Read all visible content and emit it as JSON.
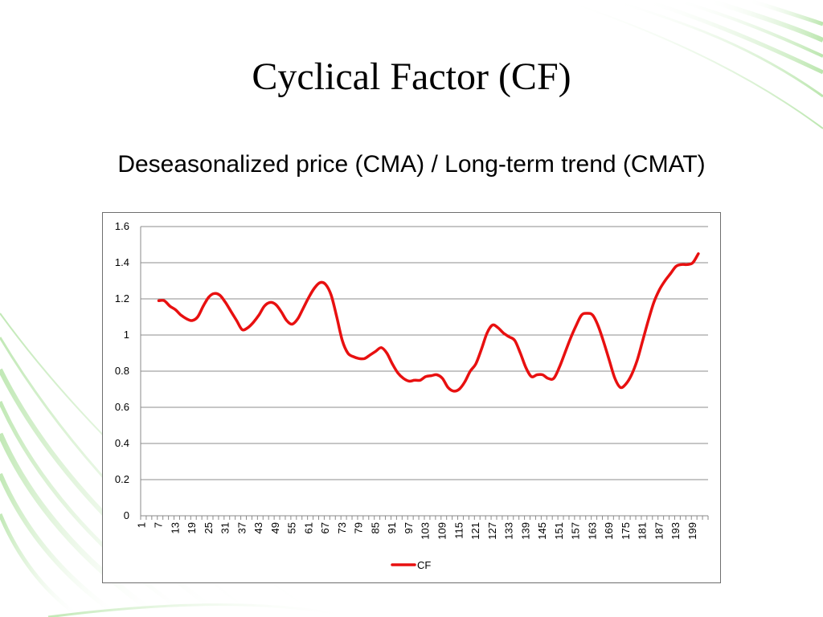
{
  "slide": {
    "title": "Cyclical Factor (CF)",
    "subtitle": "Deseasonalized price (CMA) / Long-term trend (CMAT)",
    "accent_green": "#8fd67a"
  },
  "chart_data": {
    "type": "line",
    "title": "",
    "xlabel": "",
    "ylabel": "",
    "x_categories_count": 204,
    "x_tick_labels": [
      "1",
      "7",
      "13",
      "19",
      "25",
      "31",
      "37",
      "43",
      "49",
      "55",
      "61",
      "67",
      "73",
      "79",
      "85",
      "91",
      "97",
      "103",
      "109",
      "115",
      "121",
      "127",
      "133",
      "139",
      "145",
      "151",
      "157",
      "163",
      "169",
      "175",
      "181",
      "187",
      "193",
      "199"
    ],
    "y_tick_labels": [
      "0",
      "0.2",
      "0.4",
      "0.6",
      "0.8",
      "1",
      "1.2",
      "1.4",
      "1.6"
    ],
    "ylim": [
      0,
      1.6
    ],
    "grid": true,
    "legend_position": "bottom",
    "series": [
      {
        "name": "CF",
        "color": "#e81010",
        "points": [
          [
            7,
            1.19
          ],
          [
            9,
            1.19
          ],
          [
            11,
            1.16
          ],
          [
            13,
            1.14
          ],
          [
            15,
            1.11
          ],
          [
            17,
            1.09
          ],
          [
            19,
            1.08
          ],
          [
            21,
            1.1
          ],
          [
            23,
            1.16
          ],
          [
            25,
            1.21
          ],
          [
            27,
            1.23
          ],
          [
            29,
            1.22
          ],
          [
            31,
            1.18
          ],
          [
            33,
            1.13
          ],
          [
            35,
            1.08
          ],
          [
            37,
            1.03
          ],
          [
            39,
            1.04
          ],
          [
            41,
            1.07
          ],
          [
            43,
            1.11
          ],
          [
            45,
            1.16
          ],
          [
            47,
            1.18
          ],
          [
            49,
            1.17
          ],
          [
            51,
            1.13
          ],
          [
            53,
            1.08
          ],
          [
            55,
            1.06
          ],
          [
            57,
            1.09
          ],
          [
            59,
            1.15
          ],
          [
            61,
            1.21
          ],
          [
            63,
            1.26
          ],
          [
            65,
            1.29
          ],
          [
            67,
            1.28
          ],
          [
            69,
            1.22
          ],
          [
            71,
            1.1
          ],
          [
            73,
            0.97
          ],
          [
            75,
            0.9
          ],
          [
            77,
            0.88
          ],
          [
            79,
            0.87
          ],
          [
            81,
            0.87
          ],
          [
            83,
            0.89
          ],
          [
            85,
            0.91
          ],
          [
            87,
            0.93
          ],
          [
            89,
            0.9
          ],
          [
            91,
            0.84
          ],
          [
            93,
            0.79
          ],
          [
            95,
            0.76
          ],
          [
            97,
            0.745
          ],
          [
            99,
            0.75
          ],
          [
            101,
            0.75
          ],
          [
            103,
            0.77
          ],
          [
            105,
            0.775
          ],
          [
            107,
            0.78
          ],
          [
            109,
            0.76
          ],
          [
            111,
            0.71
          ],
          [
            113,
            0.69
          ],
          [
            115,
            0.7
          ],
          [
            117,
            0.74
          ],
          [
            119,
            0.8
          ],
          [
            121,
            0.84
          ],
          [
            123,
            0.92
          ],
          [
            125,
            1.01
          ],
          [
            127,
            1.055
          ],
          [
            129,
            1.04
          ],
          [
            131,
            1.01
          ],
          [
            133,
            0.99
          ],
          [
            135,
            0.97
          ],
          [
            137,
            0.9
          ],
          [
            139,
            0.82
          ],
          [
            141,
            0.77
          ],
          [
            143,
            0.78
          ],
          [
            145,
            0.78
          ],
          [
            147,
            0.76
          ],
          [
            149,
            0.76
          ],
          [
            151,
            0.82
          ],
          [
            153,
            0.9
          ],
          [
            155,
            0.98
          ],
          [
            157,
            1.05
          ],
          [
            159,
            1.11
          ],
          [
            161,
            1.12
          ],
          [
            163,
            1.11
          ],
          [
            165,
            1.05
          ],
          [
            167,
            0.96
          ],
          [
            169,
            0.86
          ],
          [
            171,
            0.76
          ],
          [
            173,
            0.71
          ],
          [
            175,
            0.73
          ],
          [
            177,
            0.78
          ],
          [
            179,
            0.86
          ],
          [
            181,
            0.97
          ],
          [
            183,
            1.08
          ],
          [
            185,
            1.18
          ],
          [
            187,
            1.25
          ],
          [
            189,
            1.3
          ],
          [
            191,
            1.34
          ],
          [
            193,
            1.38
          ],
          [
            195,
            1.39
          ],
          [
            197,
            1.39
          ],
          [
            199,
            1.4
          ],
          [
            201,
            1.45
          ]
        ]
      }
    ]
  }
}
